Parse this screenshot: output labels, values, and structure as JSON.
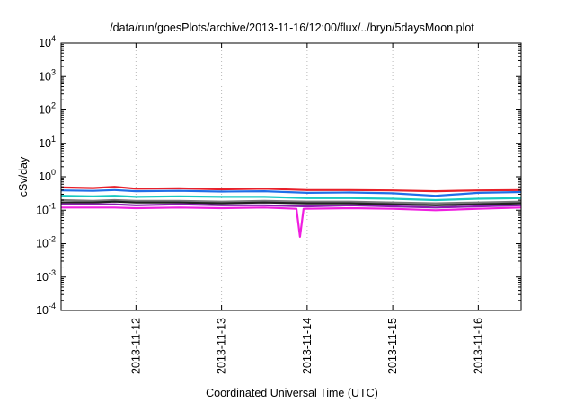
{
  "chart_data": {
    "type": "line",
    "title": "/data/run/goesPlots/archive/2013-11-16/12:00/flux/../bryn/5daysMoon.plot",
    "xlabel": "Coordinated Universal Time (UTC)",
    "ylabel": "cSv/day",
    "yscale": "log",
    "ylim": [
      0.0001,
      10000
    ],
    "xlim": [
      "2013-11-11T03:00",
      "2013-11-16T12:00"
    ],
    "grid": "vertical dotted lines at date ticks",
    "y_ticks": [
      {
        "base": "10",
        "exp": "-4",
        "value": 0.0001
      },
      {
        "base": "10",
        "exp": "-3",
        "value": 0.001
      },
      {
        "base": "10",
        "exp": "-2",
        "value": 0.01
      },
      {
        "base": "10",
        "exp": "-1",
        "value": 0.1
      },
      {
        "base": "10",
        "exp": "0",
        "value": 1
      },
      {
        "base": "10",
        "exp": "1",
        "value": 10
      },
      {
        "base": "10",
        "exp": "2",
        "value": 100
      },
      {
        "base": "10",
        "exp": "3",
        "value": 1000
      },
      {
        "base": "10",
        "exp": "4",
        "value": 10000
      }
    ],
    "x_ticks": [
      {
        "label": "2013-11-12",
        "value": "2013-11-12T00:00"
      },
      {
        "label": "2013-11-13",
        "value": "2013-11-13T00:00"
      },
      {
        "label": "2013-11-14",
        "value": "2013-11-14T00:00"
      },
      {
        "label": "2013-11-15",
        "value": "2013-11-15T00:00"
      },
      {
        "label": "2013-11-16",
        "value": "2013-11-16T00:00"
      }
    ],
    "series": [
      {
        "color": "#e8202a",
        "values": [
          [
            "2013-11-11T03:00",
            0.48
          ],
          [
            "2013-11-11T12:00",
            0.46
          ],
          [
            "2013-11-11T18:00",
            0.5
          ],
          [
            "2013-11-12T00:00",
            0.44
          ],
          [
            "2013-11-12T12:00",
            0.45
          ],
          [
            "2013-11-13T00:00",
            0.42
          ],
          [
            "2013-11-13T12:00",
            0.44
          ],
          [
            "2013-11-14T00:00",
            0.4
          ],
          [
            "2013-11-14T12:00",
            0.4
          ],
          [
            "2013-11-15T00:00",
            0.39
          ],
          [
            "2013-11-15T12:00",
            0.37
          ],
          [
            "2013-11-16T00:00",
            0.39
          ],
          [
            "2013-11-16T12:00",
            0.4
          ]
        ]
      },
      {
        "color": "#1f6fe8",
        "values": [
          [
            "2013-11-11T03:00",
            0.39
          ],
          [
            "2013-11-11T12:00",
            0.38
          ],
          [
            "2013-11-11T18:00",
            0.4
          ],
          [
            "2013-11-12T00:00",
            0.37
          ],
          [
            "2013-11-12T12:00",
            0.38
          ],
          [
            "2013-11-13T00:00",
            0.36
          ],
          [
            "2013-11-13T12:00",
            0.37
          ],
          [
            "2013-11-14T00:00",
            0.33
          ],
          [
            "2013-11-14T12:00",
            0.34
          ],
          [
            "2013-11-15T00:00",
            0.32
          ],
          [
            "2013-11-15T12:00",
            0.27
          ],
          [
            "2013-11-16T00:00",
            0.33
          ],
          [
            "2013-11-16T12:00",
            0.35
          ]
        ]
      },
      {
        "color": "#18c8c0",
        "values": [
          [
            "2013-11-11T03:00",
            0.27
          ],
          [
            "2013-11-11T12:00",
            0.26
          ],
          [
            "2013-11-11T18:00",
            0.27
          ],
          [
            "2013-11-12T00:00",
            0.25
          ],
          [
            "2013-11-12T12:00",
            0.26
          ],
          [
            "2013-11-13T00:00",
            0.25
          ],
          [
            "2013-11-13T12:00",
            0.25
          ],
          [
            "2013-11-14T00:00",
            0.23
          ],
          [
            "2013-11-14T12:00",
            0.23
          ],
          [
            "2013-11-15T00:00",
            0.22
          ],
          [
            "2013-11-15T12:00",
            0.2
          ],
          [
            "2013-11-16T00:00",
            0.22
          ],
          [
            "2013-11-16T12:00",
            0.23
          ]
        ]
      },
      {
        "color": "#7a7a7a",
        "values": [
          [
            "2013-11-11T03:00",
            0.2
          ],
          [
            "2013-11-11T12:00",
            0.19
          ],
          [
            "2013-11-11T18:00",
            0.2
          ],
          [
            "2013-11-12T00:00",
            0.19
          ],
          [
            "2013-11-12T12:00",
            0.19
          ],
          [
            "2013-11-13T00:00",
            0.18
          ],
          [
            "2013-11-13T12:00",
            0.19
          ],
          [
            "2013-11-14T00:00",
            0.18
          ],
          [
            "2013-11-14T12:00",
            0.18
          ],
          [
            "2013-11-15T00:00",
            0.17
          ],
          [
            "2013-11-15T12:00",
            0.16
          ],
          [
            "2013-11-16T00:00",
            0.17
          ],
          [
            "2013-11-16T12:00",
            0.18
          ]
        ]
      },
      {
        "color": "#222222",
        "values": [
          [
            "2013-11-11T03:00",
            0.17
          ],
          [
            "2013-11-11T12:00",
            0.17
          ],
          [
            "2013-11-11T18:00",
            0.18
          ],
          [
            "2013-11-12T00:00",
            0.17
          ],
          [
            "2013-11-12T12:00",
            0.17
          ],
          [
            "2013-11-13T00:00",
            0.16
          ],
          [
            "2013-11-13T12:00",
            0.17
          ],
          [
            "2013-11-14T00:00",
            0.16
          ],
          [
            "2013-11-14T12:00",
            0.16
          ],
          [
            "2013-11-15T00:00",
            0.15
          ],
          [
            "2013-11-15T12:00",
            0.14
          ],
          [
            "2013-11-16T00:00",
            0.15
          ],
          [
            "2013-11-16T12:00",
            0.16
          ]
        ]
      },
      {
        "color": "#8a1fb0",
        "values": [
          [
            "2013-11-11T03:00",
            0.15
          ],
          [
            "2013-11-11T12:00",
            0.15
          ],
          [
            "2013-11-11T18:00",
            0.15
          ],
          [
            "2013-11-12T00:00",
            0.14
          ],
          [
            "2013-11-12T12:00",
            0.15
          ],
          [
            "2013-11-13T00:00",
            0.14
          ],
          [
            "2013-11-13T12:00",
            0.14
          ],
          [
            "2013-11-14T00:00",
            0.13
          ],
          [
            "2013-11-14T12:00",
            0.14
          ],
          [
            "2013-11-15T00:00",
            0.13
          ],
          [
            "2013-11-15T12:00",
            0.12
          ],
          [
            "2013-11-16T00:00",
            0.13
          ],
          [
            "2013-11-16T12:00",
            0.14
          ]
        ]
      },
      {
        "color": "#f01ee0",
        "values": [
          [
            "2013-11-11T03:00",
            0.12
          ],
          [
            "2013-11-11T12:00",
            0.12
          ],
          [
            "2013-11-11T18:00",
            0.12
          ],
          [
            "2013-11-12T00:00",
            0.115
          ],
          [
            "2013-11-12T12:00",
            0.12
          ],
          [
            "2013-11-13T00:00",
            0.115
          ],
          [
            "2013-11-13T12:00",
            0.12
          ],
          [
            "2013-11-13T21:00",
            0.11
          ],
          [
            "2013-11-13T22:00",
            0.016
          ],
          [
            "2013-11-13T23:00",
            0.11
          ],
          [
            "2013-11-14T12:00",
            0.115
          ],
          [
            "2013-11-15T00:00",
            0.11
          ],
          [
            "2013-11-15T12:00",
            0.1
          ],
          [
            "2013-11-16T00:00",
            0.11
          ],
          [
            "2013-11-16T12:00",
            0.12
          ]
        ]
      }
    ]
  }
}
